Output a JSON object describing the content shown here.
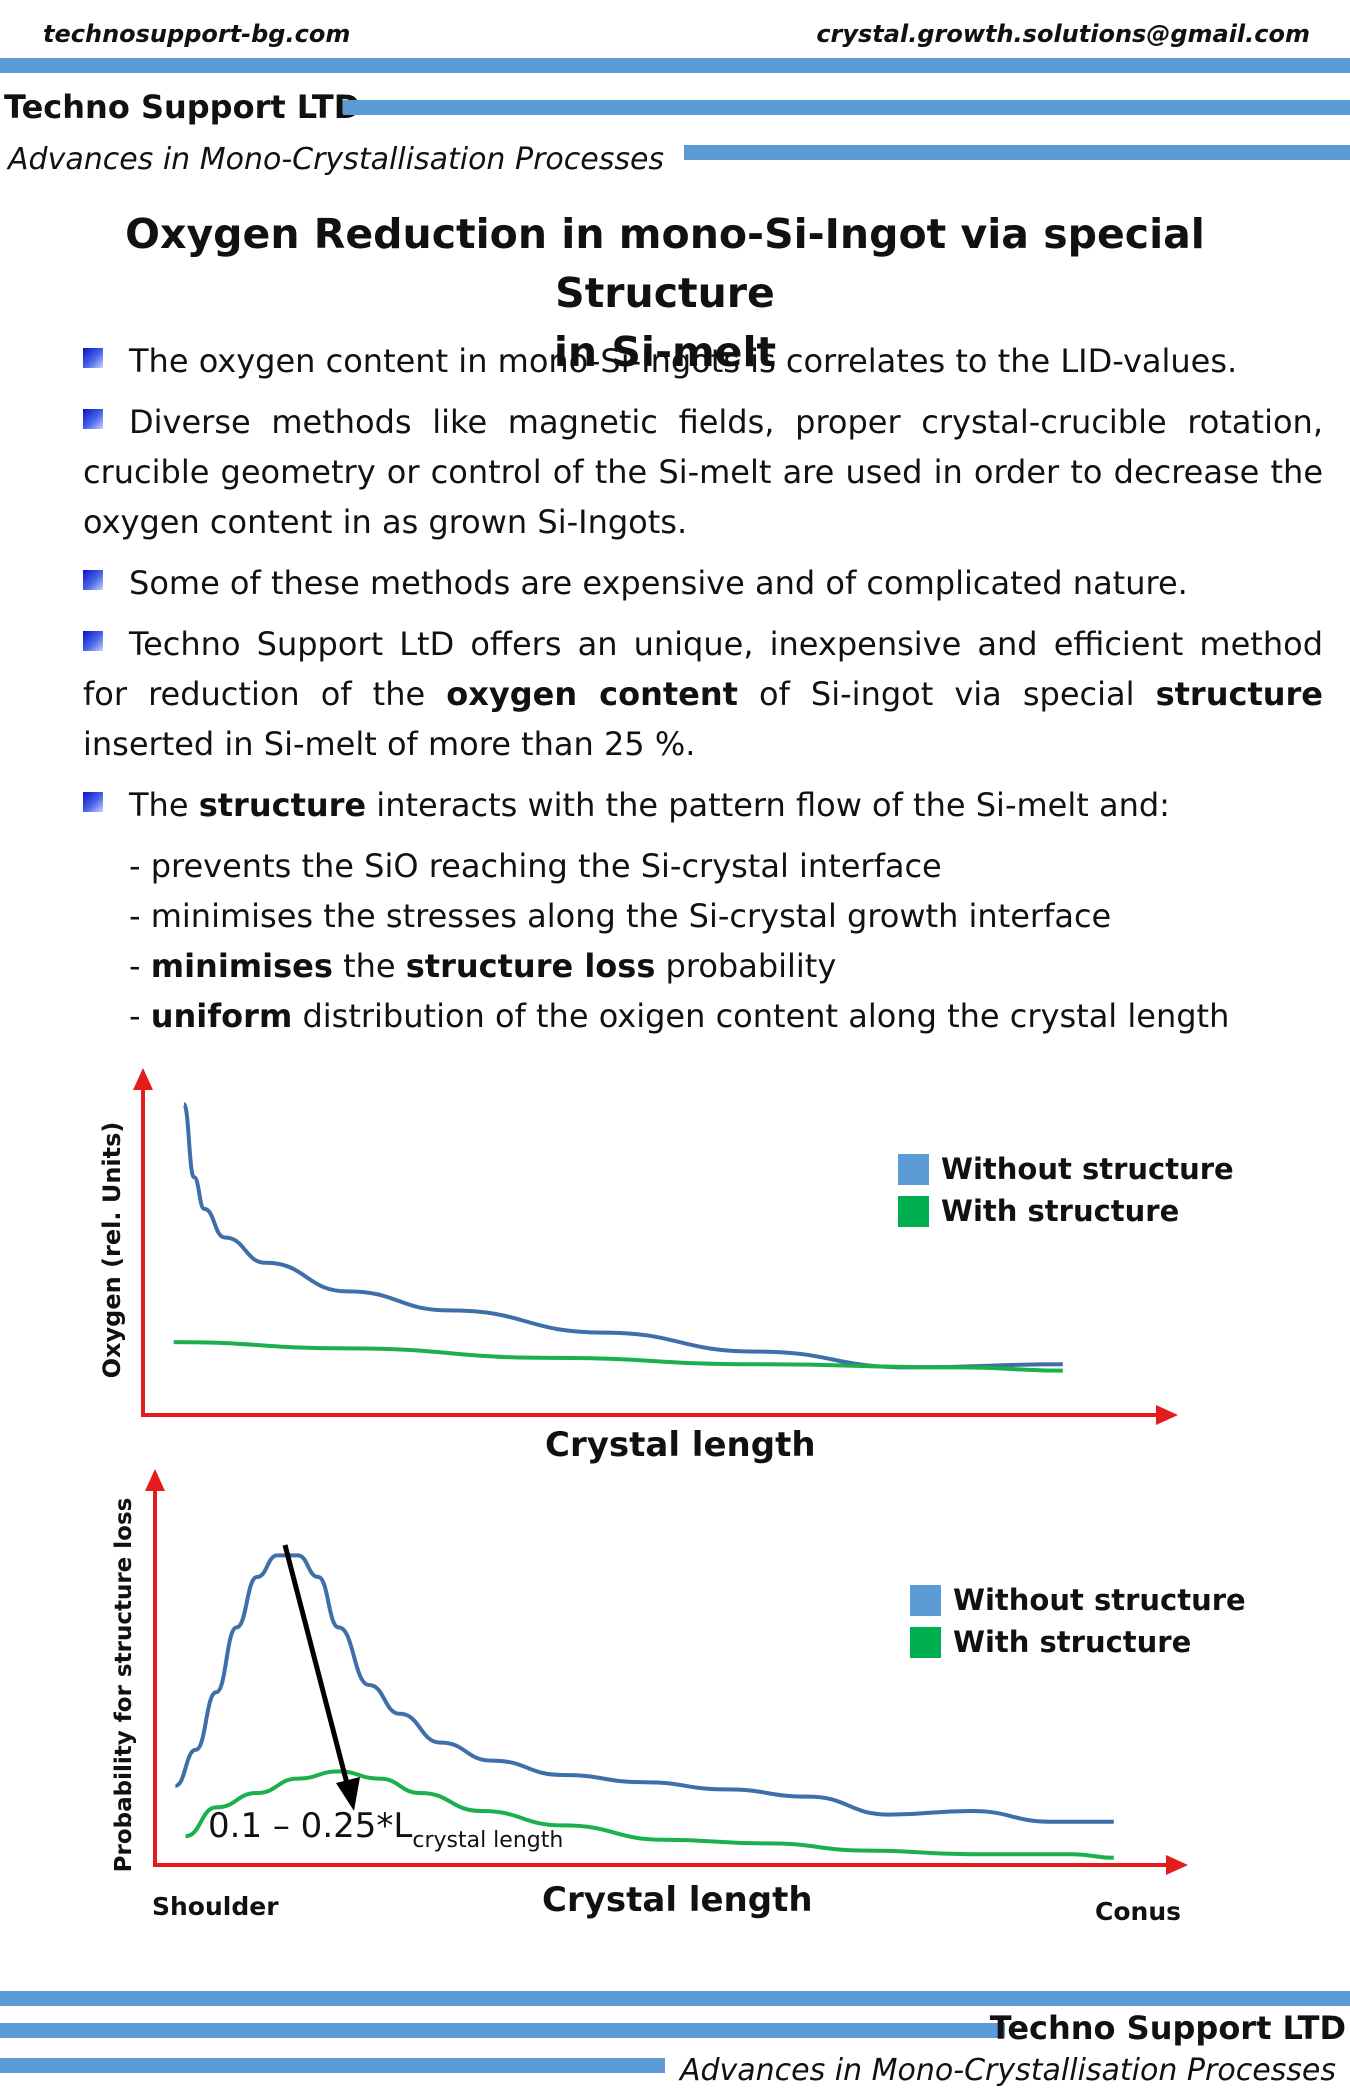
{
  "header": {
    "website": "technosupport-bg.com",
    "email": "crystal.growth.solutions@gmail.com",
    "company": "Techno Support LTD",
    "subtitle": "Advances in Mono-Crystallisation Processes"
  },
  "title": {
    "line1": "Oxygen Reduction in mono-Si-Ingot via special Structure",
    "line2": "in Si-melt"
  },
  "bullets": [
    {
      "parts": [
        {
          "t": "The oxygen content in mono-Si-Ingots is correlates to the LID-values."
        }
      ]
    },
    {
      "parts": [
        {
          "t": "Diverse methods like magnetic fields, proper crystal-crucible rotation, crucible geometry or control of the Si-melt are used in order to decrease the oxygen content in as grown Si-Ingots."
        }
      ]
    },
    {
      "parts": [
        {
          "t": "Some of these methods are expensive and of complicated nature."
        }
      ]
    },
    {
      "parts": [
        {
          "t": "Techno Support LtD offers an unique, inexpensive and efficient method for reduction of the "
        },
        {
          "t": "oxygen content",
          "b": true
        },
        {
          "t": " of Si-ingot via special "
        },
        {
          "t": "structure",
          "b": true
        },
        {
          "t": " inserted in Si-melt of more than 25 %."
        }
      ]
    },
    {
      "parts": [
        {
          "t": "The "
        },
        {
          "t": "structure",
          "b": true
        },
        {
          "t": " interacts with the pattern flow of the Si-melt and:"
        }
      ]
    }
  ],
  "subitems": [
    {
      "parts": [
        {
          "t": "-  prevents the SiO reaching the Si-crystal interface"
        }
      ]
    },
    {
      "parts": [
        {
          "t": "- minimises the stresses along the Si-crystal growth interface"
        }
      ]
    },
    {
      "parts": [
        {
          "t": "- "
        },
        {
          "t": "minimises",
          "b": true
        },
        {
          "t": " the "
        },
        {
          "t": "structure loss",
          "b": true
        },
        {
          "t": " probability"
        }
      ]
    },
    {
      "parts": [
        {
          "t": "- "
        },
        {
          "t": "uniform",
          "b": true
        },
        {
          "t": " distribution of the oxigen content along the crystal length"
        }
      ]
    }
  ],
  "colors": {
    "accent_bar": "#5b9bd5",
    "axis": "#e41c1c",
    "without_structure": "#3e6fa8",
    "with_structure": "#1ab04c",
    "legend_without": "#5b9bd5",
    "legend_with": "#00b050"
  },
  "chart_data": [
    {
      "type": "line",
      "xlabel": "Crystal length",
      "ylabel": "Oxygen (rel. Units)",
      "xlim": [
        0,
        1
      ],
      "ylim": [
        0,
        1
      ],
      "grid": false,
      "legend": "top-right",
      "legend_entries": [
        "Without structure",
        "With structure"
      ],
      "series": [
        {
          "name": "Without structure",
          "x": [
            0.04,
            0.05,
            0.06,
            0.08,
            0.12,
            0.2,
            0.3,
            0.45,
            0.6,
            0.75,
            0.9
          ],
          "y": [
            0.98,
            0.75,
            0.65,
            0.56,
            0.48,
            0.39,
            0.33,
            0.26,
            0.2,
            0.15,
            0.16
          ]
        },
        {
          "name": "With structure",
          "x": [
            0.03,
            0.2,
            0.4,
            0.6,
            0.8,
            0.9
          ],
          "y": [
            0.23,
            0.21,
            0.18,
            0.16,
            0.15,
            0.14
          ]
        }
      ]
    },
    {
      "type": "line",
      "xlabel": "Crystal length",
      "ylabel": "Probability for structure loss",
      "x_start_label": "Shoulder",
      "x_end_label": "Conus",
      "xlim": [
        0,
        1
      ],
      "ylim": [
        0,
        1
      ],
      "grid": false,
      "legend": "top-right",
      "legend_entries": [
        "Without structure",
        "With structure"
      ],
      "annotation": {
        "text": "0.1 – 0.25*L",
        "sub": "crystal length"
      },
      "series": [
        {
          "name": "Without structure",
          "x": [
            0.02,
            0.04,
            0.06,
            0.08,
            0.1,
            0.12,
            0.14,
            0.16,
            0.18,
            0.21,
            0.24,
            0.28,
            0.33,
            0.4,
            0.48,
            0.56,
            0.64,
            0.72,
            0.8,
            0.88,
            0.94
          ],
          "y": [
            0.22,
            0.32,
            0.48,
            0.66,
            0.8,
            0.86,
            0.86,
            0.8,
            0.66,
            0.5,
            0.42,
            0.34,
            0.29,
            0.25,
            0.23,
            0.21,
            0.19,
            0.14,
            0.15,
            0.12,
            0.12
          ]
        },
        {
          "name": "With structure",
          "x": [
            0.03,
            0.06,
            0.1,
            0.14,
            0.18,
            0.22,
            0.26,
            0.32,
            0.4,
            0.5,
            0.6,
            0.7,
            0.8,
            0.9,
            0.94
          ],
          "y": [
            0.08,
            0.16,
            0.2,
            0.24,
            0.26,
            0.24,
            0.2,
            0.15,
            0.11,
            0.07,
            0.06,
            0.04,
            0.03,
            0.03,
            0.02
          ]
        }
      ]
    }
  ],
  "footer": {
    "company": "Techno Support LTD",
    "subtitle": "Advances in Mono-Crystallisation Processes"
  }
}
